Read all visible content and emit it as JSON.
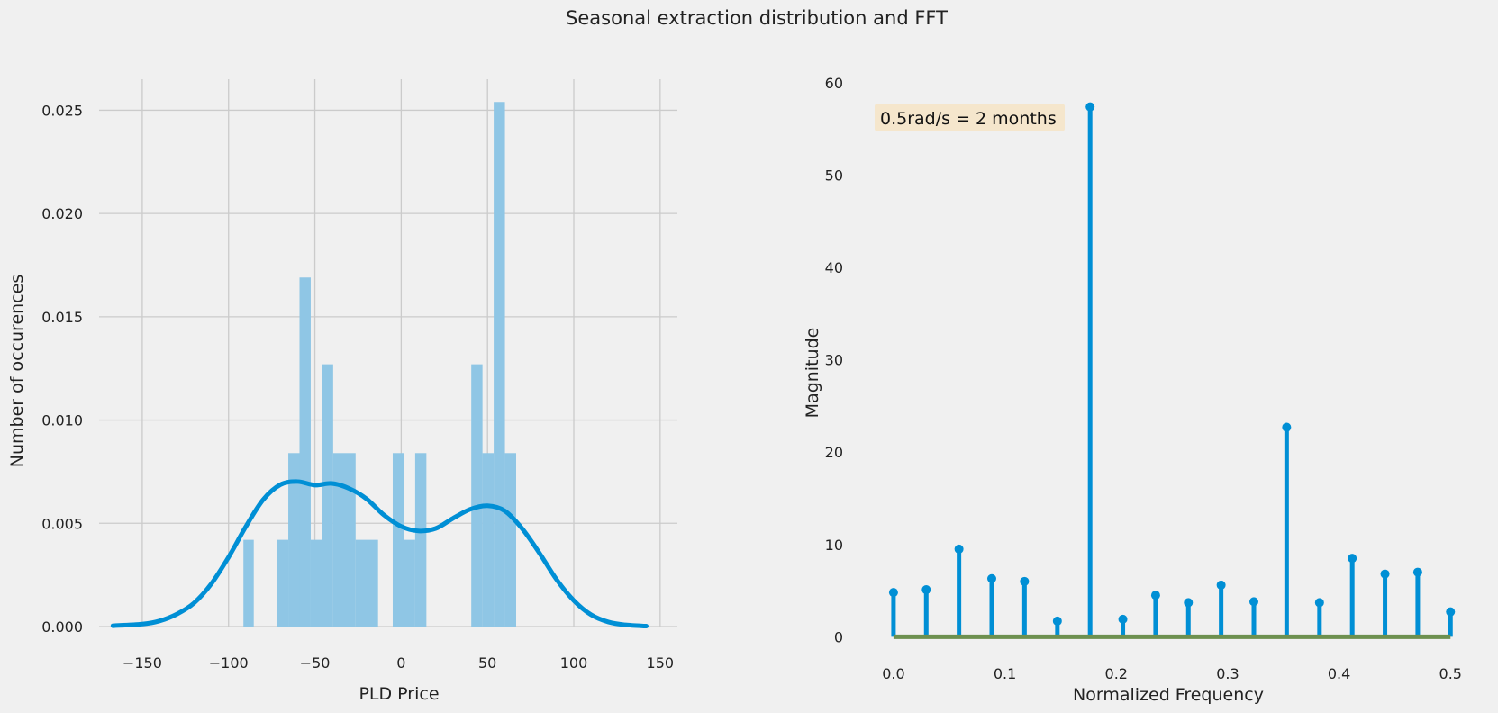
{
  "figure": {
    "title": "Seasonal extraction distribution and FFT"
  },
  "colors": {
    "background": "#f0f0f0",
    "grid": "#cbcbcb",
    "bar_fill": "#8fc6e5",
    "kde_line": "#008fd5",
    "stem": "#008fd5",
    "baseline": "#6d904f",
    "annotation_box": "#f5e6cc"
  },
  "chart_data": [
    {
      "type": "bar",
      "subtype": "histogram_with_kde",
      "title": "",
      "xlabel": "PLD Price",
      "ylabel": "Number of occurences",
      "xlim": [
        -175,
        160
      ],
      "ylim": [
        0,
        0.0265
      ],
      "xticks": [
        -150,
        -100,
        -50,
        0,
        50,
        100,
        150
      ],
      "xtick_labels": [
        "−150",
        "−100",
        "−50",
        "0",
        "50",
        "100",
        "150"
      ],
      "yticks": [
        0.0,
        0.005,
        0.01,
        0.015,
        0.02,
        0.025
      ],
      "ytick_labels": [
        "0.000",
        "0.005",
        "0.010",
        "0.015",
        "0.020",
        "0.025"
      ],
      "grid": true,
      "bins": [
        {
          "x0": -91.4,
          "x1": -85.4,
          "value": 0.0042
        },
        {
          "x0": -72.0,
          "x1": -65.4,
          "value": 0.0042
        },
        {
          "x0": -65.4,
          "x1": -58.9,
          "value": 0.0084
        },
        {
          "x0": -58.9,
          "x1": -52.4,
          "value": 0.0169
        },
        {
          "x0": -52.4,
          "x1": -45.9,
          "value": 0.0042
        },
        {
          "x0": -45.9,
          "x1": -39.4,
          "value": 0.0127
        },
        {
          "x0": -39.4,
          "x1": -26.4,
          "value": 0.0084
        },
        {
          "x0": -26.4,
          "x1": -13.4,
          "value": 0.0042
        },
        {
          "x0": -4.9,
          "x1": 1.6,
          "value": 0.0084
        },
        {
          "x0": 1.6,
          "x1": 8.1,
          "value": 0.0042
        },
        {
          "x0": 8.1,
          "x1": 14.6,
          "value": 0.0084
        },
        {
          "x0": 40.6,
          "x1": 47.1,
          "value": 0.0127
        },
        {
          "x0": 47.1,
          "x1": 53.6,
          "value": 0.0084
        },
        {
          "x0": 53.6,
          "x1": 60.1,
          "value": 0.0254
        },
        {
          "x0": 60.1,
          "x1": 66.6,
          "value": 0.0084
        }
      ],
      "kde": {
        "x": [
          -167,
          -150,
          -140,
          -130,
          -120,
          -110,
          -100,
          -90,
          -80,
          -70,
          -60,
          -50,
          -40,
          -30,
          -20,
          -10,
          0,
          10,
          20,
          30,
          40,
          50,
          60,
          70,
          80,
          90,
          100,
          110,
          120,
          130,
          142
        ],
        "y": [
          4e-05,
          0.00012,
          0.00027,
          0.0006,
          0.00114,
          0.00207,
          0.00336,
          0.00484,
          0.00614,
          0.00687,
          0.00702,
          0.00685,
          0.00693,
          0.00668,
          0.00618,
          0.0054,
          0.00485,
          0.00463,
          0.00475,
          0.00524,
          0.00568,
          0.00585,
          0.0056,
          0.00475,
          0.00357,
          0.00228,
          0.00126,
          0.00057,
          0.00022,
          8e-05,
          2e-05
        ]
      }
    },
    {
      "type": "stem",
      "title": "",
      "xlabel": "Normalized Frequency",
      "ylabel": "Magnitude",
      "xlim": [
        -0.025,
        0.52
      ],
      "ylim": [
        -2.5,
        60
      ],
      "xticks": [
        0.0,
        0.1,
        0.2,
        0.3,
        0.4,
        0.5
      ],
      "xtick_labels": [
        "0.0",
        "0.1",
        "0.2",
        "0.3",
        "0.4",
        "0.5"
      ],
      "yticks": [
        0,
        10,
        20,
        30,
        40,
        50,
        60
      ],
      "ytick_labels": [
        "0",
        "10",
        "20",
        "30",
        "40",
        "50",
        "60"
      ],
      "grid": false,
      "x": [
        0.0,
        0.0294,
        0.0588,
        0.0882,
        0.1176,
        0.1471,
        0.1765,
        0.2059,
        0.2353,
        0.2647,
        0.2941,
        0.3235,
        0.3529,
        0.3824,
        0.4118,
        0.4412,
        0.4706,
        0.5
      ],
      "y": [
        4.8,
        5.1,
        9.5,
        6.3,
        6.0,
        1.7,
        57.4,
        1.9,
        4.5,
        3.7,
        5.6,
        3.8,
        22.7,
        3.7,
        8.5,
        6.8,
        7.0,
        2.7
      ],
      "annotation": "0.5rad/s = 2 months"
    }
  ]
}
